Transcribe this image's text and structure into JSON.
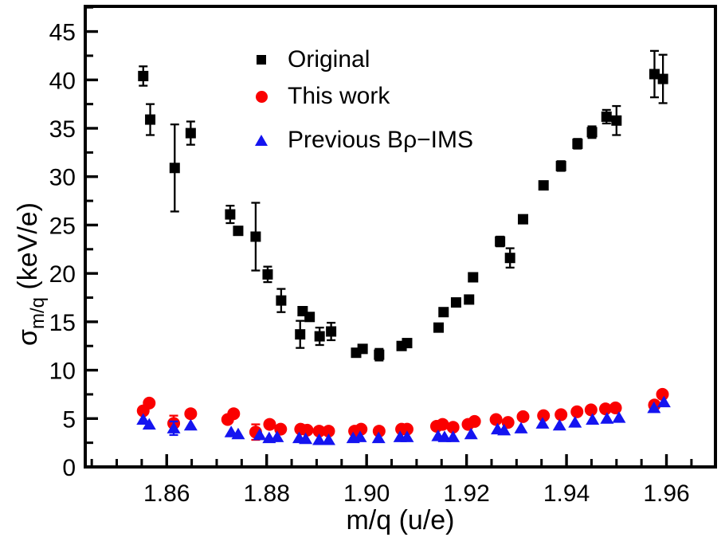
{
  "figure": {
    "background": "#ffffff",
    "axis_color": "#000000"
  },
  "legend": {
    "items": [
      {
        "label": "Original",
        "marker": "square",
        "color": "#000000"
      },
      {
        "label": "This work",
        "marker": "circle",
        "color": "#fa0000"
      },
      {
        "label": "Previous Bρ−IMS",
        "marker": "triangle",
        "color": "#1414f0"
      }
    ]
  },
  "ylabel_parts": {
    "symbol": "σ",
    "sub": "m/q",
    "unit": " (keV/e)"
  },
  "chart_data": {
    "type": "scatter",
    "title": "",
    "xlabel": "m/q (u/e)",
    "ylabel": "sigma_m/q (keV/e)",
    "xlim": [
      1.8437,
      1.9698
    ],
    "ylim": [
      0,
      47.6
    ],
    "grid": false,
    "legend_position": "upper-center-inside",
    "x_major_ticks": [
      1.86,
      1.88,
      1.9,
      1.92,
      1.94,
      1.96
    ],
    "x_tick_labels": [
      "1.86",
      "1.88",
      "1.90",
      "1.92",
      "1.94",
      "1.96"
    ],
    "x_minor_step": 0.005,
    "y_major_ticks": [
      0,
      5,
      10,
      15,
      20,
      25,
      30,
      35,
      40,
      45
    ],
    "y_tick_labels": [
      "0",
      "5",
      "10",
      "15",
      "20",
      "25",
      "30",
      "35",
      "40",
      "45"
    ],
    "y_minor_step": 2.5,
    "series": [
      {
        "name": "Original",
        "marker": "square",
        "color": "#000000",
        "points": [
          [
            1.8553,
            40.4,
            1.0
          ],
          [
            1.8567,
            35.9,
            1.6
          ],
          [
            1.8616,
            30.9,
            4.5
          ],
          [
            1.8648,
            34.5,
            1.2
          ],
          [
            1.8727,
            26.1,
            0.9
          ],
          [
            1.8743,
            24.4,
            0.4
          ],
          [
            1.8778,
            23.8,
            3.5
          ],
          [
            1.8802,
            19.9,
            0.8
          ],
          [
            1.8829,
            17.2,
            1.2
          ],
          [
            1.8867,
            13.7,
            1.4
          ],
          [
            1.8872,
            16.1,
            0.4
          ],
          [
            1.8886,
            15.5,
            0.4
          ],
          [
            1.8906,
            13.5,
            0.9
          ],
          [
            1.8929,
            14.0,
            0.9
          ],
          [
            1.8979,
            11.8,
            0.3
          ],
          [
            1.8992,
            12.2,
            0.3
          ],
          [
            1.9025,
            11.6,
            0.6
          ],
          [
            1.907,
            12.5,
            0.3
          ],
          [
            1.9081,
            12.8,
            0.3
          ],
          [
            1.9144,
            14.4,
            0.4
          ],
          [
            1.9154,
            16.0,
            0.4
          ],
          [
            1.9179,
            17.0,
            0.4
          ],
          [
            1.9205,
            17.3,
            0.4
          ],
          [
            1.9213,
            19.6,
            0.4
          ],
          [
            1.9267,
            23.3,
            0.5
          ],
          [
            1.9287,
            21.6,
            1.0
          ],
          [
            1.9313,
            25.6,
            0.4
          ],
          [
            1.9354,
            29.1,
            0.4
          ],
          [
            1.9389,
            31.1,
            0.5
          ],
          [
            1.9422,
            33.4,
            0.5
          ],
          [
            1.9451,
            34.6,
            0.6
          ],
          [
            1.948,
            36.2,
            0.7
          ],
          [
            1.95,
            35.8,
            1.5
          ],
          [
            1.9576,
            40.6,
            2.4
          ],
          [
            1.9593,
            40.1,
            2.5
          ]
        ]
      },
      {
        "name": "This work",
        "marker": "circle",
        "color": "#fa0000",
        "points": [
          [
            1.8553,
            5.8,
            0
          ],
          [
            1.8565,
            6.6,
            0
          ],
          [
            1.8614,
            4.5,
            0.8
          ],
          [
            1.8648,
            5.5,
            0
          ],
          [
            1.8722,
            4.9,
            0
          ],
          [
            1.8734,
            5.5,
            0
          ],
          [
            1.8778,
            3.6,
            0.8
          ],
          [
            1.8806,
            4.4,
            0
          ],
          [
            1.8828,
            3.9,
            0
          ],
          [
            1.8868,
            3.9,
            0
          ],
          [
            1.8881,
            3.8,
            0
          ],
          [
            1.8905,
            3.7,
            0
          ],
          [
            1.8924,
            3.7,
            0
          ],
          [
            1.8976,
            3.7,
            0
          ],
          [
            1.8989,
            3.9,
            0
          ],
          [
            1.9025,
            3.7,
            0
          ],
          [
            1.907,
            3.9,
            0
          ],
          [
            1.9081,
            3.9,
            0
          ],
          [
            1.914,
            4.2,
            0
          ],
          [
            1.9152,
            4.4,
            0
          ],
          [
            1.9173,
            4.1,
            0
          ],
          [
            1.9203,
            4.4,
            0
          ],
          [
            1.9216,
            4.7,
            0
          ],
          [
            1.9259,
            4.9,
            0
          ],
          [
            1.9283,
            4.6,
            0
          ],
          [
            1.9313,
            5.2,
            0
          ],
          [
            1.9354,
            5.3,
            0
          ],
          [
            1.9389,
            5.4,
            0
          ],
          [
            1.9421,
            5.7,
            0
          ],
          [
            1.9449,
            5.9,
            0
          ],
          [
            1.9478,
            6.0,
            0
          ],
          [
            1.9498,
            6.1,
            0
          ],
          [
            1.9576,
            6.4,
            0
          ],
          [
            1.9592,
            7.5,
            0
          ]
        ]
      },
      {
        "name": "Previous Bρ−IMS",
        "marker": "triangle",
        "color": "#1414f0",
        "points": [
          [
            1.8553,
            4.9,
            0
          ],
          [
            1.8565,
            4.4,
            0
          ],
          [
            1.8614,
            4.0,
            0.7
          ],
          [
            1.8648,
            4.3,
            0
          ],
          [
            1.8729,
            3.6,
            0
          ],
          [
            1.8743,
            3.4,
            0
          ],
          [
            1.8786,
            3.3,
            0
          ],
          [
            1.8805,
            3.0,
            0
          ],
          [
            1.8821,
            3.1,
            0
          ],
          [
            1.8865,
            3.0,
            0
          ],
          [
            1.8878,
            2.9,
            0
          ],
          [
            1.8905,
            2.8,
            0
          ],
          [
            1.8924,
            2.8,
            0
          ],
          [
            1.8973,
            3.0,
            0
          ],
          [
            1.8987,
            3.1,
            0
          ],
          [
            1.9024,
            3.0,
            0
          ],
          [
            1.9067,
            3.1,
            0
          ],
          [
            1.9081,
            3.1,
            0
          ],
          [
            1.9143,
            3.2,
            0
          ],
          [
            1.9156,
            3.1,
            0
          ],
          [
            1.9173,
            3.1,
            0
          ],
          [
            1.9209,
            3.4,
            0
          ],
          [
            1.9262,
            3.9,
            0
          ],
          [
            1.9275,
            3.8,
            0
          ],
          [
            1.9309,
            4.0,
            0
          ],
          [
            1.9352,
            4.5,
            0
          ],
          [
            1.9386,
            4.3,
            0
          ],
          [
            1.9417,
            4.6,
            0
          ],
          [
            1.9452,
            4.9,
            0
          ],
          [
            1.9481,
            5.0,
            0
          ],
          [
            1.9505,
            5.1,
            0
          ],
          [
            1.9575,
            6.1,
            0
          ],
          [
            1.9595,
            6.7,
            0
          ]
        ]
      }
    ]
  }
}
